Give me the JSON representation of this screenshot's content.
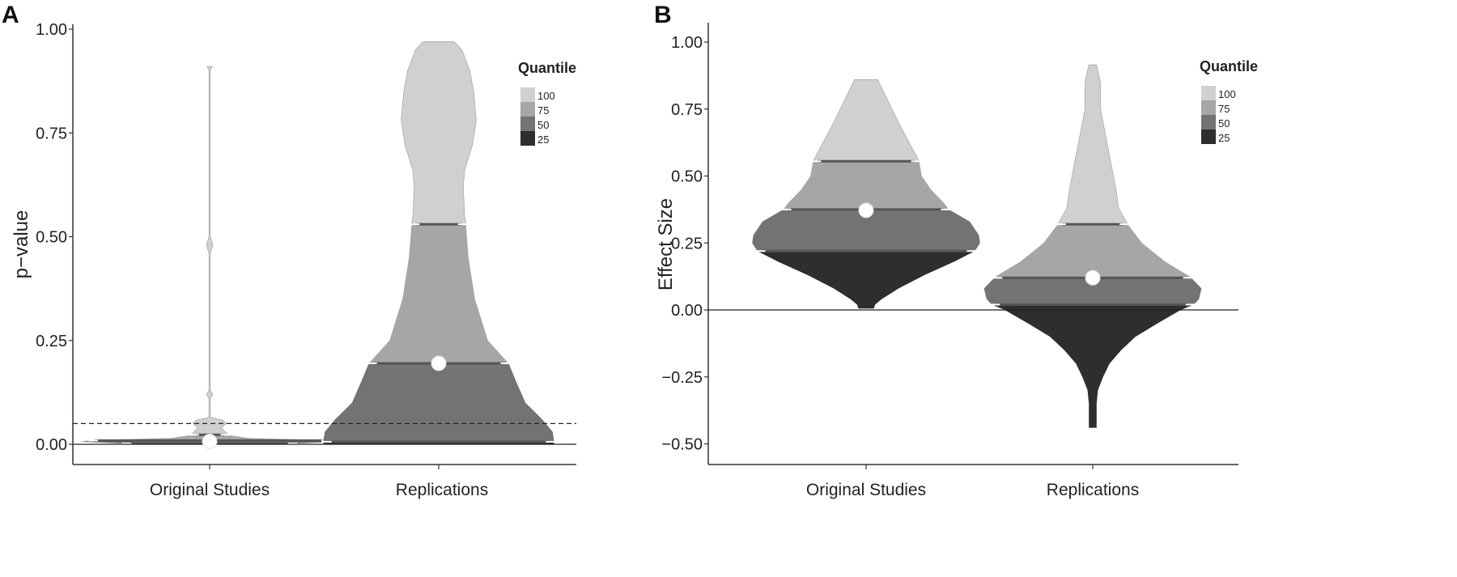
{
  "quantile_colors": {
    "100": "#d0d0d0",
    "75": "#a6a6a6",
    "50": "#737373",
    "25": "#2e2e2e"
  },
  "chart_data": [
    {
      "panel_label": "A",
      "type": "violin",
      "ylabel": "p−value",
      "ylim": [
        0,
        1
      ],
      "yticks": [
        0,
        0.25,
        0.5,
        0.75,
        1.0
      ],
      "ytick_labels": [
        "0.00",
        "0.25",
        "0.50",
        "0.75",
        "1.00"
      ],
      "reference_lines": [
        {
          "y": 0,
          "style": "solid"
        },
        {
          "y": 0.05,
          "style": "dashed"
        }
      ],
      "categories": [
        "Original Studies",
        "Replications"
      ],
      "legend": {
        "title": "Quantile",
        "entries": [
          "100",
          "75",
          "50",
          "25"
        ],
        "placement": "top-right"
      },
      "series": [
        {
          "name": "Original Studies",
          "quantile_breaks": [
            0.0,
            0.002,
            0.009,
            0.023,
            0.91
          ],
          "center_point": 0.007,
          "density": [
            [
              0.91,
              0.02
            ],
            [
              0.9,
              0.004
            ],
            [
              0.5,
              0.004
            ],
            [
              0.48,
              0.025
            ],
            [
              0.46,
              0.004
            ],
            [
              0.13,
              0.004
            ],
            [
              0.12,
              0.025
            ],
            [
              0.11,
              0.004
            ],
            [
              0.065,
              0.006
            ],
            [
              0.058,
              0.1
            ],
            [
              0.05,
              0.13
            ],
            [
              0.04,
              0.09
            ],
            [
              0.03,
              0.12
            ],
            [
              0.022,
              0.15
            ],
            [
              0.015,
              0.3
            ],
            [
              0.01,
              0.9
            ],
            [
              0.006,
              1.0
            ],
            [
              0.0,
              0.5
            ]
          ]
        },
        {
          "name": "Replications",
          "quantile_breaks": [
            0.0,
            0.006,
            0.195,
            0.53,
            0.97
          ],
          "center_point": 0.195,
          "density": [
            [
              0.97,
              0.12
            ],
            [
              0.95,
              0.18
            ],
            [
              0.9,
              0.24
            ],
            [
              0.85,
              0.27
            ],
            [
              0.78,
              0.29
            ],
            [
              0.72,
              0.26
            ],
            [
              0.66,
              0.2
            ],
            [
              0.62,
              0.19
            ],
            [
              0.55,
              0.2
            ],
            [
              0.53,
              0.21
            ],
            [
              0.45,
              0.23
            ],
            [
              0.35,
              0.28
            ],
            [
              0.25,
              0.38
            ],
            [
              0.195,
              0.54
            ],
            [
              0.15,
              0.6
            ],
            [
              0.1,
              0.67
            ],
            [
              0.06,
              0.8
            ],
            [
              0.03,
              0.88
            ],
            [
              0.01,
              0.89
            ],
            [
              0.0,
              0.89
            ]
          ]
        }
      ]
    },
    {
      "panel_label": "B",
      "type": "violin",
      "ylabel": "Effect Size",
      "ylim": [
        -0.5,
        1
      ],
      "yticks": [
        -0.5,
        -0.25,
        0,
        0.25,
        0.5,
        0.75,
        1.0
      ],
      "ytick_labels": [
        "−0.50",
        "−0.25",
        "0.00",
        "0.25",
        "0.50",
        "0.75",
        "1.00"
      ],
      "reference_lines": [
        {
          "y": 0,
          "style": "solid"
        }
      ],
      "categories": [
        "Original Studies",
        "Replications"
      ],
      "legend": {
        "title": "Quantile",
        "entries": [
          "100",
          "75",
          "50",
          "25"
        ],
        "placement": "top-right"
      },
      "series": [
        {
          "name": "Original Studies",
          "quantile_breaks": [
            0.005,
            0.22,
            0.375,
            0.555,
            0.86
          ],
          "center_point": 0.372,
          "density": [
            [
              0.86,
              0.09
            ],
            [
              0.8,
              0.15
            ],
            [
              0.7,
              0.25
            ],
            [
              0.6,
              0.36
            ],
            [
              0.555,
              0.41
            ],
            [
              0.5,
              0.43
            ],
            [
              0.45,
              0.5
            ],
            [
              0.4,
              0.6
            ],
            [
              0.375,
              0.64
            ],
            [
              0.33,
              0.8
            ],
            [
              0.28,
              0.87
            ],
            [
              0.25,
              0.88
            ],
            [
              0.22,
              0.84
            ],
            [
              0.18,
              0.68
            ],
            [
              0.13,
              0.45
            ],
            [
              0.08,
              0.25
            ],
            [
              0.04,
              0.12
            ],
            [
              0.02,
              0.07
            ],
            [
              0.005,
              0.06
            ]
          ]
        },
        {
          "name": "Replications",
          "quantile_breaks": [
            -0.44,
            0.02,
            0.12,
            0.32,
            0.915
          ],
          "center_point": 0.12,
          "density": [
            [
              0.915,
              0.03
            ],
            [
              0.85,
              0.06
            ],
            [
              0.75,
              0.06
            ],
            [
              0.6,
              0.12
            ],
            [
              0.45,
              0.18
            ],
            [
              0.38,
              0.2
            ],
            [
              0.32,
              0.27
            ],
            [
              0.25,
              0.38
            ],
            [
              0.18,
              0.56
            ],
            [
              0.125,
              0.75
            ],
            [
              0.08,
              0.84
            ],
            [
              0.04,
              0.82
            ],
            [
              0.02,
              0.78
            ],
            [
              0.0,
              0.68
            ],
            [
              -0.05,
              0.5
            ],
            [
              -0.1,
              0.33
            ],
            [
              -0.15,
              0.22
            ],
            [
              -0.2,
              0.13
            ],
            [
              -0.25,
              0.08
            ],
            [
              -0.3,
              0.04
            ],
            [
              -0.35,
              0.03
            ],
            [
              -0.44,
              0.03
            ]
          ]
        }
      ]
    }
  ]
}
